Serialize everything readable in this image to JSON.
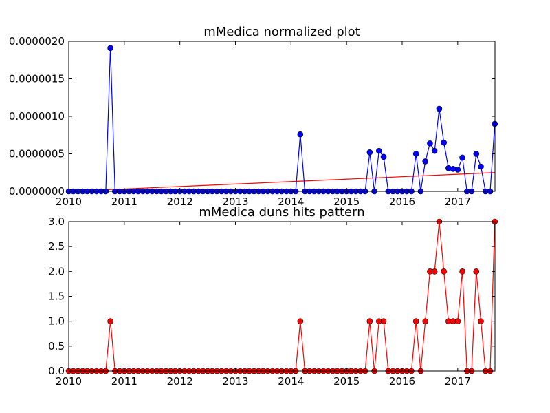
{
  "chart_data": [
    {
      "type": "line",
      "title": "mMedica normalized plot",
      "xlabel": "",
      "ylabel": "",
      "xlim": [
        2010.0,
        2017.67
      ],
      "ylim": [
        0,
        2e-06
      ],
      "x_ticks": [
        "2010",
        "2011",
        "2012",
        "2013",
        "2014",
        "2015",
        "2016",
        "2017"
      ],
      "y_ticks": [
        "0.0000000",
        "0.0000005",
        "0.0000010",
        "0.0000015",
        "0.0000020"
      ],
      "colors": {
        "series": "#0000ff",
        "trend": "#ff0000"
      },
      "series": [
        {
          "x": [
            "2010-01",
            "2010-02",
            "2010-03",
            "2010-04",
            "2010-05",
            "2010-06",
            "2010-07",
            "2010-08",
            "2010-09",
            "2010-10",
            "2010-11",
            "2010-12",
            "2011-01",
            "2011-02",
            "2011-03",
            "2011-04",
            "2011-05",
            "2011-06",
            "2011-07",
            "2011-08",
            "2011-09",
            "2011-10",
            "2011-11",
            "2011-12",
            "2012-01",
            "2012-02",
            "2012-03",
            "2012-04",
            "2012-05",
            "2012-06",
            "2012-07",
            "2012-08",
            "2012-09",
            "2012-10",
            "2012-11",
            "2012-12",
            "2013-01",
            "2013-02",
            "2013-03",
            "2013-04",
            "2013-05",
            "2013-06",
            "2013-07",
            "2013-08",
            "2013-09",
            "2013-10",
            "2013-11",
            "2013-12",
            "2014-01",
            "2014-02",
            "2014-03",
            "2014-04",
            "2014-05",
            "2014-06",
            "2014-07",
            "2014-08",
            "2014-09",
            "2014-10",
            "2014-11",
            "2014-12",
            "2015-01",
            "2015-02",
            "2015-03",
            "2015-04",
            "2015-05",
            "2015-06",
            "2015-07",
            "2015-08",
            "2015-09",
            "2015-10",
            "2015-11",
            "2015-12",
            "2016-01",
            "2016-02",
            "2016-03",
            "2016-04",
            "2016-05",
            "2016-06",
            "2016-07",
            "2016-08",
            "2016-09",
            "2016-10",
            "2016-11",
            "2016-12",
            "2017-01",
            "2017-02",
            "2017-03",
            "2017-04",
            "2017-05",
            "2017-06",
            "2017-07",
            "2017-08",
            "2017-09"
          ],
          "y": [
            0,
            0,
            0,
            0,
            0,
            0,
            0,
            0,
            0,
            1.91e-06,
            0,
            0,
            0,
            0,
            0,
            0,
            0,
            0,
            0,
            0,
            0,
            0,
            0,
            0,
            0,
            0,
            0,
            0,
            0,
            0,
            0,
            0,
            0,
            0,
            0,
            0,
            0,
            0,
            0,
            0,
            0,
            0,
            0,
            0,
            0,
            0,
            0,
            0,
            0,
            0,
            7.6e-07,
            0,
            0,
            0,
            0,
            0,
            0,
            0,
            0,
            0,
            0,
            0,
            0,
            0,
            0,
            5.2e-07,
            0,
            5.4e-07,
            4.6e-07,
            0,
            0,
            0,
            0,
            0,
            0,
            5e-07,
            0,
            4e-07,
            6.4e-07,
            5.4e-07,
            1.1e-06,
            6.5e-07,
            3.1e-07,
            3e-07,
            2.9e-07,
            4.5e-07,
            0,
            0,
            5e-07,
            3.3e-07,
            0,
            0,
            9e-07
          ]
        }
      ],
      "trend": {
        "x": [
          "2010-01",
          "2017-09"
        ],
        "y": [
          0,
          2.5e-07
        ]
      }
    },
    {
      "type": "line",
      "title": "mMedica duns hits pattern",
      "xlabel": "",
      "ylabel": "",
      "xlim": [
        2010.0,
        2017.67
      ],
      "ylim": [
        0,
        3
      ],
      "x_ticks": [
        "2010",
        "2011",
        "2012",
        "2013",
        "2014",
        "2015",
        "2016",
        "2017"
      ],
      "y_ticks": [
        "0.0",
        "0.5",
        "1.0",
        "1.5",
        "2.0",
        "2.5",
        "3.0"
      ],
      "colors": {
        "series": "#ff0000"
      },
      "series": [
        {
          "x": [
            "2010-01",
            "2010-02",
            "2010-03",
            "2010-04",
            "2010-05",
            "2010-06",
            "2010-07",
            "2010-08",
            "2010-09",
            "2010-10",
            "2010-11",
            "2010-12",
            "2011-01",
            "2011-02",
            "2011-03",
            "2011-04",
            "2011-05",
            "2011-06",
            "2011-07",
            "2011-08",
            "2011-09",
            "2011-10",
            "2011-11",
            "2011-12",
            "2012-01",
            "2012-02",
            "2012-03",
            "2012-04",
            "2012-05",
            "2012-06",
            "2012-07",
            "2012-08",
            "2012-09",
            "2012-10",
            "2012-11",
            "2012-12",
            "2013-01",
            "2013-02",
            "2013-03",
            "2013-04",
            "2013-05",
            "2013-06",
            "2013-07",
            "2013-08",
            "2013-09",
            "2013-10",
            "2013-11",
            "2013-12",
            "2014-01",
            "2014-02",
            "2014-03",
            "2014-04",
            "2014-05",
            "2014-06",
            "2014-07",
            "2014-08",
            "2014-09",
            "2014-10",
            "2014-11",
            "2014-12",
            "2015-01",
            "2015-02",
            "2015-03",
            "2015-04",
            "2015-05",
            "2015-06",
            "2015-07",
            "2015-08",
            "2015-09",
            "2015-10",
            "2015-11",
            "2015-12",
            "2016-01",
            "2016-02",
            "2016-03",
            "2016-04",
            "2016-05",
            "2016-06",
            "2016-07",
            "2016-08",
            "2016-09",
            "2016-10",
            "2016-11",
            "2016-12",
            "2017-01",
            "2017-02",
            "2017-03",
            "2017-04",
            "2017-05",
            "2017-06",
            "2017-07",
            "2017-08",
            "2017-09"
          ],
          "y": [
            0,
            0,
            0,
            0,
            0,
            0,
            0,
            0,
            0,
            1,
            0,
            0,
            0,
            0,
            0,
            0,
            0,
            0,
            0,
            0,
            0,
            0,
            0,
            0,
            0,
            0,
            0,
            0,
            0,
            0,
            0,
            0,
            0,
            0,
            0,
            0,
            0,
            0,
            0,
            0,
            0,
            0,
            0,
            0,
            0,
            0,
            0,
            0,
            0,
            0,
            1,
            0,
            0,
            0,
            0,
            0,
            0,
            0,
            0,
            0,
            0,
            0,
            0,
            0,
            0,
            1,
            0,
            1,
            1,
            0,
            0,
            0,
            0,
            0,
            0,
            1,
            0,
            1,
            2,
            2,
            3,
            2,
            1,
            1,
            1,
            2,
            0,
            0,
            2,
            1,
            0,
            0,
            3
          ]
        }
      ]
    }
  ]
}
